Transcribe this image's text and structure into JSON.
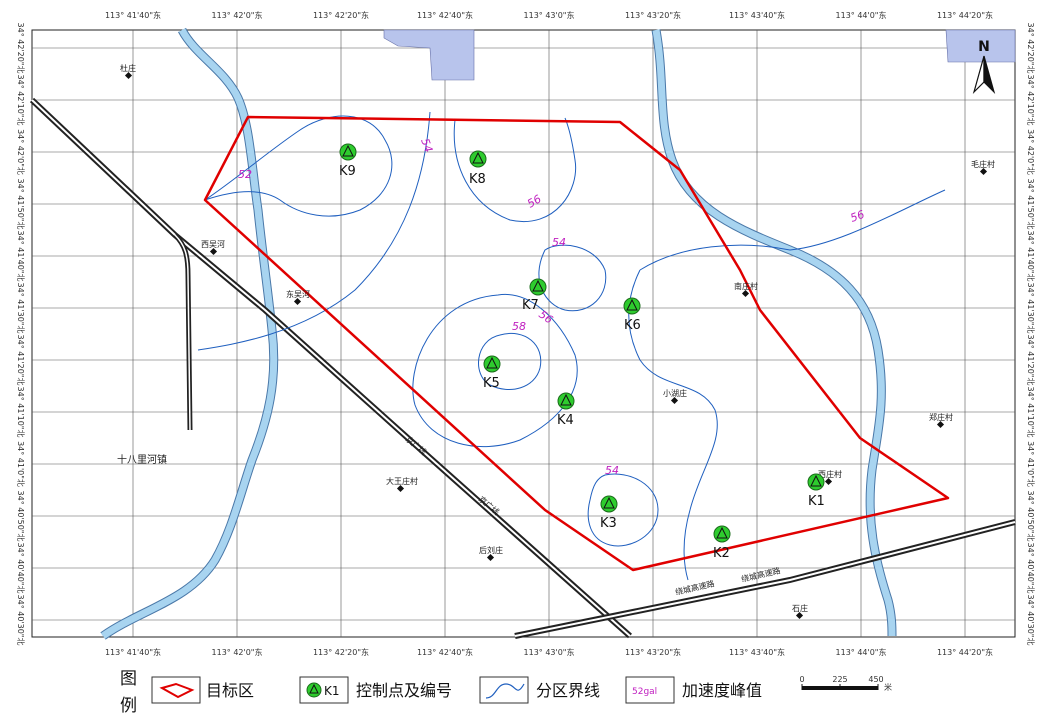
{
  "coords": {
    "top": [
      "113° 41'40\"东",
      "113° 42'0\"东",
      "113° 42'20\"东",
      "113° 42'40\"东",
      "113° 43'0\"东",
      "113° 43'20\"东",
      "113° 43'40\"东",
      "113° 44'0\"东",
      "113° 44'20\"东"
    ],
    "bottom": [
      "113° 41'40\"东",
      "113° 42'0\"东",
      "113° 42'20\"东",
      "113° 42'40\"东",
      "113° 43'0\"东",
      "113° 43'20\"东",
      "113° 43'40\"东",
      "113° 44'0\"东",
      "113° 44'20\"东"
    ],
    "left": [
      "34° 42'20\"北",
      "34° 42'10\"北",
      "34° 42'0\"北",
      "34° 41'50\"北",
      "34° 41'40\"北",
      "34° 41'30\"北",
      "34° 41'20\"北",
      "34° 41'10\"北",
      "34° 41'0\"北",
      "34° 40'50\"北",
      "34° 40'40\"北",
      "34° 40'30\"北"
    ],
    "right": [
      "34° 42'20\"北",
      "34° 42'10\"北",
      "34° 42'0\"北",
      "34° 41'50\"北",
      "34° 41'40\"北",
      "34° 41'30\"北",
      "34° 41'20\"北",
      "34° 41'10\"北",
      "34° 41'0\"北",
      "34° 40'50\"北",
      "34° 40'40\"北",
      "34° 40'30\"北"
    ]
  },
  "villages": [
    "杜庄",
    "西吴河",
    "东吴河",
    "十八里河镇",
    "大王庄村",
    "后刘庄",
    "小湖庄",
    "南庄村",
    "郑庄村",
    "毛庄村",
    "西庄村",
    "石庄"
  ],
  "control_points": [
    "K1",
    "K2",
    "K3",
    "K4",
    "K5",
    "K6",
    "K7",
    "K8",
    "K9"
  ],
  "contour_labels": [
    "52",
    "54",
    "56",
    "54",
    "58",
    "56",
    "54",
    "56"
  ],
  "roads": [
    "京广线",
    "京广线",
    "绕城高速路",
    "绕城高速路"
  ],
  "north": "N",
  "legend": {
    "title": "图例",
    "items": [
      {
        "label": "目标区"
      },
      {
        "symbol_text": "K1",
        "label": "控制点及编号"
      },
      {
        "label": "分区界线"
      },
      {
        "symbol_text": "52gal",
        "label": "加速度峰值"
      }
    ],
    "scale": {
      "ticks": [
        "0",
        "225",
        "450"
      ],
      "unit": "米"
    }
  },
  "colors": {
    "target_boundary": "#e00000",
    "contour": "#1f5fbf",
    "river_fill": "#a8d4f0",
    "water_body": "#b8c4ec",
    "control_point": "#2ecc2e",
    "contour_label": "#c020c0"
  }
}
